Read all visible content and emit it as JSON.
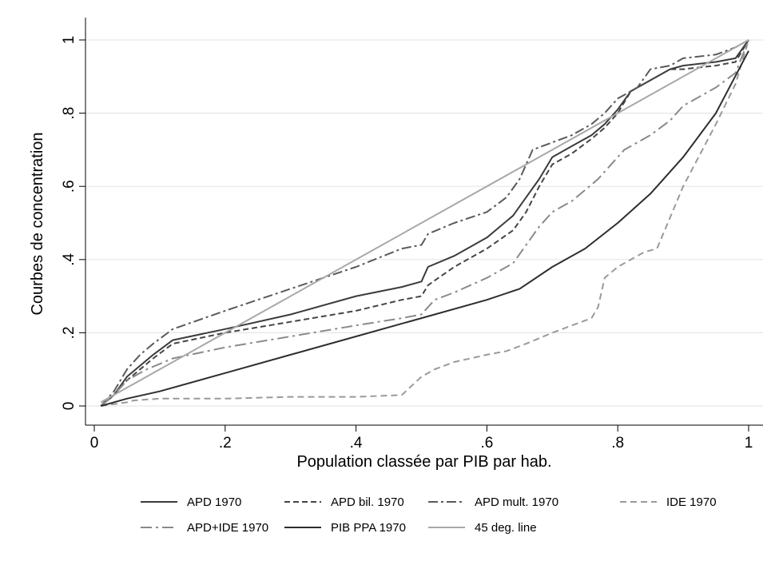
{
  "chart_data": {
    "type": "line",
    "xlabel": "Population classée par PIB par hab.",
    "ylabel": "Courbes de concentration",
    "xlim": [
      0,
      1
    ],
    "ylim": [
      0,
      1
    ],
    "xticks": [
      0,
      0.2,
      0.4,
      0.6,
      0.8,
      1
    ],
    "xtick_labels": [
      "0",
      ".2",
      ".4",
      ".6",
      ".8",
      "1"
    ],
    "yticks": [
      0,
      0.2,
      0.4,
      0.6,
      0.8,
      1
    ],
    "ytick_labels": [
      "0",
      ".2",
      ".4",
      ".6",
      ".8",
      "1"
    ],
    "grid": "horizontal",
    "legend_position": "bottom",
    "series": [
      {
        "name": "APD 1970",
        "color": "#3b3b3b",
        "dash": "solid",
        "x": [
          0.01,
          0.03,
          0.05,
          0.07,
          0.09,
          0.12,
          0.2,
          0.3,
          0.4,
          0.47,
          0.5,
          0.51,
          0.55,
          0.6,
          0.64,
          0.66,
          0.68,
          0.7,
          0.73,
          0.76,
          0.78,
          0.8,
          0.82,
          0.85,
          0.88,
          0.9,
          0.95,
          0.98,
          1
        ],
        "y": [
          0,
          0.03,
          0.08,
          0.11,
          0.14,
          0.18,
          0.21,
          0.25,
          0.3,
          0.325,
          0.34,
          0.38,
          0.41,
          0.46,
          0.52,
          0.57,
          0.62,
          0.68,
          0.71,
          0.74,
          0.77,
          0.81,
          0.86,
          0.89,
          0.92,
          0.93,
          0.94,
          0.95,
          1
        ]
      },
      {
        "name": "APD bil. 1970",
        "color": "#454545",
        "dash": "7,4",
        "x": [
          0.01,
          0.03,
          0.05,
          0.07,
          0.09,
          0.12,
          0.2,
          0.3,
          0.4,
          0.47,
          0.5,
          0.51,
          0.55,
          0.6,
          0.64,
          0.66,
          0.68,
          0.7,
          0.73,
          0.76,
          0.78,
          0.8,
          0.82,
          0.85,
          0.88,
          0.9,
          0.95,
          0.98,
          1
        ],
        "y": [
          0,
          0.03,
          0.07,
          0.1,
          0.13,
          0.17,
          0.2,
          0.23,
          0.26,
          0.29,
          0.3,
          0.33,
          0.38,
          0.43,
          0.48,
          0.53,
          0.6,
          0.66,
          0.69,
          0.73,
          0.76,
          0.8,
          0.86,
          0.89,
          0.92,
          0.92,
          0.93,
          0.94,
          1
        ]
      },
      {
        "name": "APD mult. 1970",
        "color": "#5a5a5a",
        "dash": "12,4,3,4",
        "x": [
          0.01,
          0.03,
          0.05,
          0.07,
          0.09,
          0.12,
          0.2,
          0.3,
          0.4,
          0.47,
          0.5,
          0.51,
          0.55,
          0.6,
          0.63,
          0.65,
          0.67,
          0.7,
          0.73,
          0.76,
          0.78,
          0.8,
          0.83,
          0.85,
          0.88,
          0.9,
          0.95,
          0.98,
          1
        ],
        "y": [
          0,
          0.04,
          0.1,
          0.14,
          0.17,
          0.21,
          0.26,
          0.32,
          0.38,
          0.43,
          0.44,
          0.47,
          0.5,
          0.53,
          0.57,
          0.62,
          0.7,
          0.72,
          0.74,
          0.77,
          0.8,
          0.84,
          0.87,
          0.92,
          0.93,
          0.95,
          0.96,
          0.98,
          1
        ]
      },
      {
        "name": "IDE 1970",
        "color": "#9a9a9a",
        "dash": "8,5",
        "x": [
          0.01,
          0.03,
          0.05,
          0.06,
          0.1,
          0.2,
          0.3,
          0.4,
          0.47,
          0.5,
          0.52,
          0.55,
          0.6,
          0.63,
          0.66,
          0.7,
          0.73,
          0.76,
          0.77,
          0.78,
          0.8,
          0.82,
          0.84,
          0.86,
          0.9,
          0.95,
          0.98,
          1
        ],
        "y": [
          0,
          0.005,
          0.01,
          0.015,
          0.02,
          0.02,
          0.025,
          0.025,
          0.03,
          0.08,
          0.1,
          0.12,
          0.14,
          0.15,
          0.17,
          0.2,
          0.22,
          0.24,
          0.27,
          0.35,
          0.38,
          0.4,
          0.42,
          0.43,
          0.6,
          0.77,
          0.88,
          1
        ]
      },
      {
        "name": "APD+IDE 1970",
        "color": "#8a8a8a",
        "dash": "14,5,3,5",
        "x": [
          0.01,
          0.03,
          0.05,
          0.08,
          0.12,
          0.2,
          0.3,
          0.4,
          0.47,
          0.5,
          0.52,
          0.55,
          0.6,
          0.64,
          0.66,
          0.68,
          0.7,
          0.73,
          0.75,
          0.77,
          0.79,
          0.81,
          0.85,
          0.88,
          0.9,
          0.95,
          0.98,
          1
        ],
        "y": [
          0,
          0.03,
          0.07,
          0.1,
          0.13,
          0.16,
          0.19,
          0.22,
          0.24,
          0.25,
          0.29,
          0.31,
          0.35,
          0.39,
          0.44,
          0.49,
          0.53,
          0.56,
          0.59,
          0.62,
          0.66,
          0.7,
          0.74,
          0.78,
          0.82,
          0.87,
          0.91,
          1
        ]
      },
      {
        "name": "PIB PPA 1970",
        "color": "#2e2e2e",
        "dash": "solid",
        "x": [
          0.01,
          0.05,
          0.1,
          0.2,
          0.3,
          0.4,
          0.5,
          0.6,
          0.65,
          0.7,
          0.75,
          0.8,
          0.85,
          0.9,
          0.95,
          1
        ],
        "y": [
          0,
          0.02,
          0.04,
          0.09,
          0.14,
          0.19,
          0.24,
          0.29,
          0.32,
          0.38,
          0.43,
          0.5,
          0.58,
          0.68,
          0.8,
          0.97
        ]
      },
      {
        "name": "45 deg. line",
        "color": "#a8a8a8",
        "dash": "solid",
        "x": [
          0.01,
          1
        ],
        "y": [
          0.01,
          1
        ]
      }
    ]
  }
}
